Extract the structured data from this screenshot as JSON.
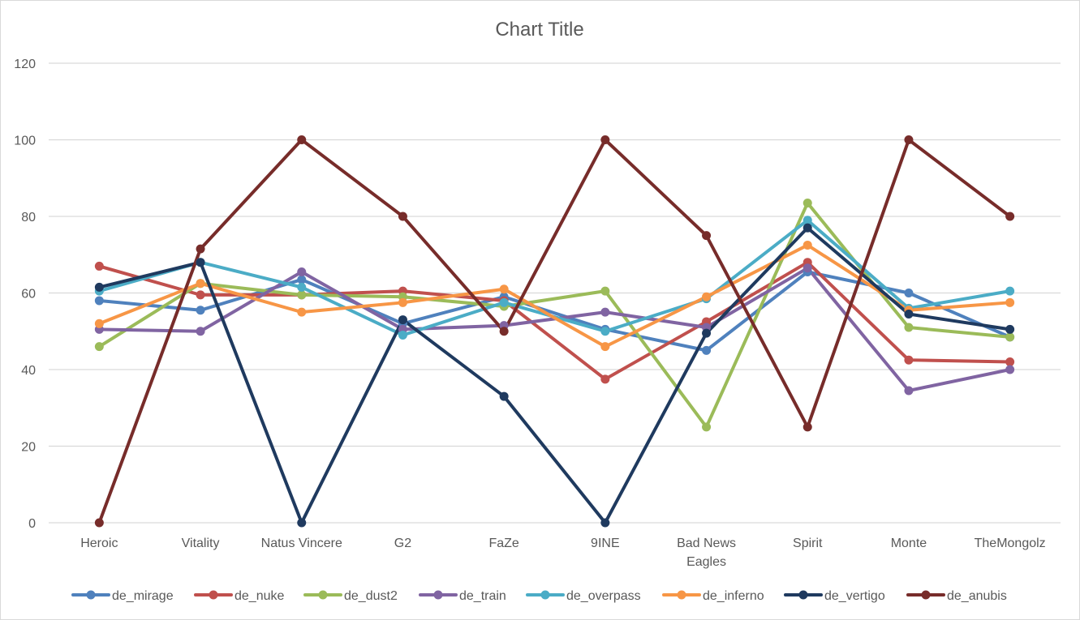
{
  "chart_data": {
    "type": "line",
    "title": "Chart Title",
    "xlabel": "",
    "ylabel": "",
    "ylim": [
      0,
      120
    ],
    "yticks": [
      0,
      20,
      40,
      60,
      80,
      100,
      120
    ],
    "grid": true,
    "legend_position": "bottom",
    "categories": [
      "Heroic",
      "Vitality",
      "Natus Vincere",
      "G2",
      "FaZe",
      "9INE",
      "Bad News Eagles",
      "Spirit",
      "Monte",
      "TheMongolz"
    ],
    "category_lines": [
      [
        "Heroic"
      ],
      [
        "Vitality"
      ],
      [
        "Natus Vincere"
      ],
      [
        "G2"
      ],
      [
        "FaZe"
      ],
      [
        "9INE"
      ],
      [
        "Bad News",
        "Eagles"
      ],
      [
        "Spirit"
      ],
      [
        "Monte"
      ],
      [
        "TheMongolz"
      ]
    ],
    "series": [
      {
        "name": "de_mirage",
        "color": "#4F81BD",
        "values": [
          58,
          55.5,
          63.5,
          52,
          59,
          50.5,
          45,
          65.5,
          60,
          48.5
        ]
      },
      {
        "name": "de_nuke",
        "color": "#C0504D",
        "values": [
          67,
          59.5,
          59.5,
          60.5,
          58,
          37.5,
          52.5,
          68,
          42.5,
          42
        ]
      },
      {
        "name": "de_dust2",
        "color": "#9BBB59",
        "values": [
          46,
          62.5,
          59.5,
          59,
          56.5,
          60.5,
          25,
          83.5,
          51,
          48.5
        ]
      },
      {
        "name": "de_train",
        "color": "#8064A2",
        "values": [
          50.5,
          50,
          65.5,
          50.5,
          51.5,
          55,
          51,
          66.5,
          34.5,
          40
        ]
      },
      {
        "name": "de_overpass",
        "color": "#4BACC6",
        "values": [
          60.5,
          68,
          61.5,
          49,
          57.5,
          50,
          58.5,
          79,
          56,
          60.5
        ]
      },
      {
        "name": "de_inferno",
        "color": "#F79646",
        "values": [
          52,
          62.5,
          55,
          57.5,
          61,
          46,
          59,
          72.5,
          55.5,
          57.5
        ]
      },
      {
        "name": "de_vertigo",
        "color": "#1F3A5F",
        "values": [
          61.5,
          68,
          0,
          53,
          33,
          0,
          49.5,
          77,
          54.5,
          50.5
        ]
      },
      {
        "name": "de_anubis",
        "color": "#772C2A",
        "values": [
          0,
          71.5,
          100,
          80,
          50,
          100,
          75,
          25,
          100,
          80
        ]
      }
    ]
  }
}
